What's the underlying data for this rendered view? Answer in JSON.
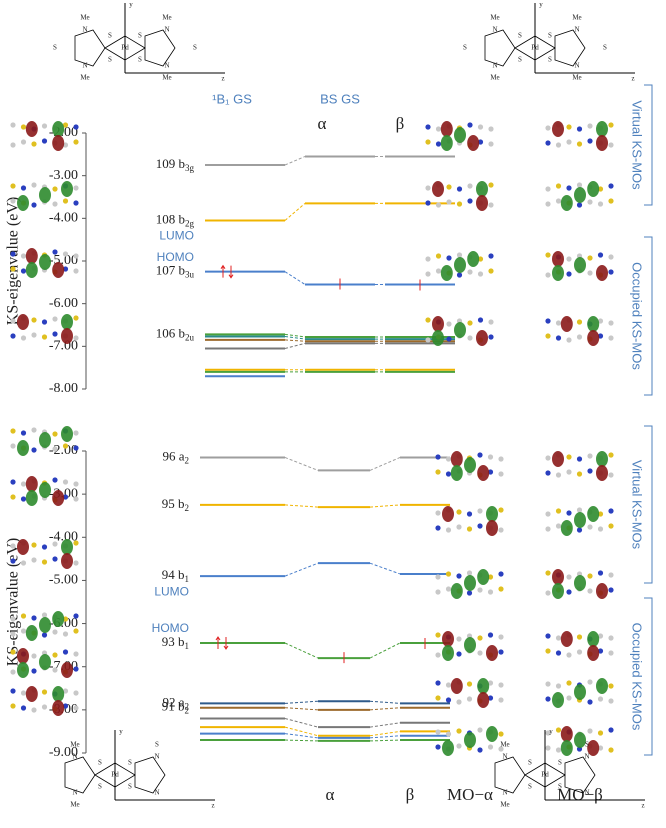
{
  "chart_data": [
    {
      "type": "level",
      "y_label": "KS-eigenvalue (eV)",
      "ylim": [
        -8,
        -2
      ],
      "yticks": [
        {
          "value": -2,
          "label": "-2.00"
        },
        {
          "value": -3,
          "label": "-3.00"
        },
        {
          "value": -4,
          "label": "-4.00"
        },
        {
          "value": -5,
          "label": "-5.00"
        },
        {
          "value": -6,
          "label": "-6.00"
        },
        {
          "value": -7,
          "label": "-7.00"
        },
        {
          "value": -8,
          "label": "-8.00"
        }
      ],
      "column_headers": [
        "¹B₁ GS",
        "BS GS",
        "α",
        "β"
      ],
      "homo_label": "HOMO",
      "lumo_label": "LUMO",
      "side_labels": [
        "Virtual KS-MOs",
        "Occupied KS-MOs"
      ],
      "series": [
        {
          "label": "109 b",
          "label_sub": "3g",
          "color": "#9e9e9e",
          "values": [
            -2.75,
            -2.55,
            -2.55
          ]
        },
        {
          "label": "108 b",
          "label_sub": "2g",
          "color": "#f0b400",
          "values": [
            -4.05,
            -3.65,
            -3.65
          ]
        },
        {
          "label": "107 b",
          "label_sub": "3u",
          "color": "#4a7fcb",
          "values": [
            -5.25,
            -5.55,
            -5.55
          ]
        },
        {
          "label": "106 b",
          "label_sub": "2u",
          "color": "#4aa03c",
          "values": [
            -6.72,
            -6.78,
            -6.78
          ]
        },
        {
          "color": "#2a8a8a",
          "values": [
            -6.77,
            -6.83,
            -6.83
          ]
        },
        {
          "color": "#9c6a2c",
          "values": [
            -6.85,
            -6.88,
            -6.88
          ]
        },
        {
          "color": "#777777",
          "values": [
            -7.05,
            -6.93,
            -6.93
          ]
        },
        {
          "color": "#f0b400",
          "values": [
            -7.55,
            -7.55,
            -7.55
          ]
        },
        {
          "color": "#4aa03c",
          "values": [
            -7.6,
            -7.6,
            -7.6
          ]
        },
        {
          "color": "#4a7fcb",
          "values": [
            -7.7,
            null,
            null
          ]
        }
      ]
    },
    {
      "type": "level",
      "y_label": "KS-eigenvalue (eV)",
      "ylim": [
        -9,
        -2
      ],
      "yticks": [
        {
          "value": -2,
          "label": "-2.00"
        },
        {
          "value": -3,
          "label": "-3.00"
        },
        {
          "value": -4,
          "label": "-4.00"
        },
        {
          "value": -5,
          "label": "-5.00"
        },
        {
          "value": -6,
          "label": "-6.00"
        },
        {
          "value": -7,
          "label": "-7.00"
        },
        {
          "value": -8,
          "label": "-8.00"
        },
        {
          "value": -9,
          "label": "-9.00"
        }
      ],
      "column_headers": [
        "α",
        "β",
        "MO−α",
        "MO−β"
      ],
      "homo_label": "HOMO",
      "lumo_label": "LUMO",
      "side_labels": [
        "Virtual KS-MOs",
        "Occupied KS-MOs"
      ],
      "series": [
        {
          "label": "96 a",
          "label_sub": "2",
          "color": "#9e9e9e",
          "values": [
            -2.15,
            -2.45,
            -2.15
          ]
        },
        {
          "label": "95 b",
          "label_sub": "2",
          "color": "#f0b400",
          "values": [
            -3.25,
            -3.3,
            -3.25
          ]
        },
        {
          "label": "94 b",
          "label_sub": "1",
          "color": "#4a7fcb",
          "values": [
            -4.9,
            -4.6,
            -4.85
          ]
        },
        {
          "label": "93 b",
          "label_sub": "1",
          "color": "#4aa03c",
          "values": [
            -6.45,
            -6.8,
            -6.45
          ]
        },
        {
          "label": "92 a",
          "label_sub": "2",
          "color": "#2e5a8a",
          "values": [
            -7.85,
            -7.8,
            -7.85
          ]
        },
        {
          "label": "91 b",
          "label_sub": "2",
          "color": "#9c6a2c",
          "values": [
            -7.95,
            -8.0,
            -7.95
          ]
        },
        {
          "color": "#777777",
          "values": [
            -8.2,
            -8.4,
            -8.3
          ]
        },
        {
          "color": "#f0b400",
          "values": [
            -8.4,
            -8.6,
            -8.5
          ]
        },
        {
          "color": "#4a7fcb",
          "values": [
            -8.55,
            -8.65,
            -8.6
          ]
        },
        {
          "color": "#4aa03c",
          "values": [
            -8.7,
            -8.72,
            -8.7
          ]
        }
      ]
    }
  ],
  "structures": [
    {
      "labels": [
        "y",
        "z",
        "Pd",
        "S",
        "S",
        "S",
        "S",
        "N",
        "N",
        "N",
        "N",
        "Me",
        "Me",
        "Me",
        "Me",
        "S",
        "S"
      ]
    },
    {
      "labels": [
        "y",
        "z",
        "Pd",
        "S",
        "S",
        "S",
        "S",
        "N",
        "N",
        "N",
        "N",
        "Me",
        "Me",
        "Me",
        "Me",
        "S",
        "S"
      ]
    },
    {
      "labels": [
        "y",
        "z",
        "Pd",
        "S",
        "S",
        "S",
        "S",
        "N",
        "N",
        "N",
        "N",
        "Me",
        "Me",
        "S"
      ]
    },
    {
      "labels": [
        "y",
        "z",
        "Pd",
        "S",
        "S",
        "S",
        "S",
        "N",
        "N",
        "N",
        "N",
        "Me",
        "Me",
        "S"
      ]
    }
  ]
}
